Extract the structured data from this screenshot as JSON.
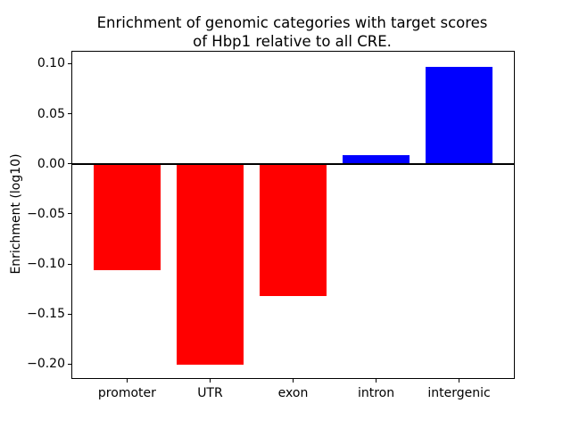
{
  "figure": {
    "background": "#ffffff"
  },
  "chart_data": {
    "type": "bar",
    "title": "Enrichment of genomic categories with target scores\nof Hbp1 relative to all CRE.",
    "title_lines": [
      "Enrichment of genomic categories with target scores",
      "of Hbp1 relative to all CRE."
    ],
    "xlabel": "",
    "ylabel": "Enrichment (log10)",
    "categories": [
      "promoter",
      "UTR",
      "exon",
      "intron",
      "intergenic"
    ],
    "values": [
      -0.106,
      -0.201,
      -0.132,
      0.009,
      0.097
    ],
    "bar_colors": [
      "#ff0000",
      "#ff0000",
      "#ff0000",
      "#0000ff",
      "#0000ff"
    ],
    "negative_color": "#ff0000",
    "positive_color": "#0000ff",
    "axis_color": "#000000",
    "ylim": [
      -0.214,
      0.112
    ],
    "xlim": [
      -0.66,
      4.66
    ],
    "bar_width": 0.8,
    "yticks": [
      0.1,
      0.05,
      0.0,
      -0.05,
      -0.1,
      -0.15,
      -0.2
    ],
    "ytick_labels": [
      "0.10",
      "0.05",
      "0.00",
      "−0.05",
      "−0.10",
      "−0.15",
      "−0.20"
    ],
    "grid": false,
    "legend": false,
    "zero_line": true
  }
}
